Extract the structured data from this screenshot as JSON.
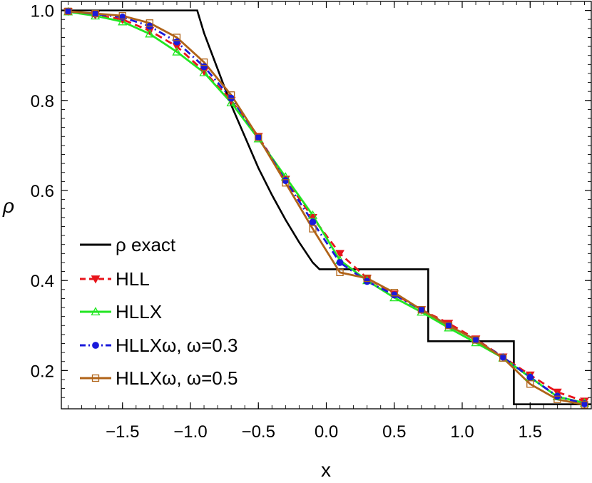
{
  "chart_data": {
    "type": "line",
    "xlabel": "x",
    "ylabel": "ρ",
    "xlim": [
      -1.95,
      1.95
    ],
    "ylim": [
      0.115,
      1.02
    ],
    "xticks": [
      -1.5,
      -1.0,
      -0.5,
      0.0,
      0.5,
      1.0,
      1.5
    ],
    "xtick_labels": [
      "−1.5",
      "−1.0",
      "−0.5",
      "0.0",
      "0.5",
      "1.0",
      "1.5"
    ],
    "yticks": [
      0.2,
      0.4,
      0.6,
      0.8,
      1.0
    ],
    "ytick_labels": [
      "0.2",
      "0.4",
      "0.6",
      "0.8",
      "1.0"
    ],
    "legend_position": "bottom-left",
    "exact": {
      "name": "ρ exact",
      "color": "#000000",
      "x": [
        -1.95,
        -0.95,
        -0.9,
        -0.8,
        -0.7,
        -0.6,
        -0.5,
        -0.4,
        -0.3,
        -0.2,
        -0.1,
        -0.05,
        0.75,
        0.75,
        1.38,
        1.38,
        1.95
      ],
      "y": [
        1.0,
        1.0,
        0.95,
        0.87,
        0.79,
        0.72,
        0.65,
        0.59,
        0.535,
        0.485,
        0.44,
        0.425,
        0.425,
        0.265,
        0.265,
        0.125,
        0.125
      ]
    },
    "x": [
      -1.9,
      -1.7,
      -1.5,
      -1.3,
      -1.1,
      -0.9,
      -0.7,
      -0.5,
      -0.3,
      -0.1,
      0.1,
      0.3,
      0.5,
      0.7,
      0.9,
      1.1,
      1.3,
      1.5,
      1.7,
      1.9
    ],
    "series": [
      {
        "name": "HLL",
        "color": "#e8141b",
        "marker": "triangle-down-filled",
        "dash": "dashed",
        "values": [
          0.998,
          0.99,
          0.98,
          0.955,
          0.92,
          0.865,
          0.8,
          0.72,
          0.625,
          0.54,
          0.46,
          0.405,
          0.37,
          0.335,
          0.305,
          0.27,
          0.23,
          0.19,
          0.152,
          0.132
        ]
      },
      {
        "name": "HLLX",
        "color": "#22e622",
        "marker": "triangle-up-open",
        "dash": "solid",
        "values": [
          0.997,
          0.988,
          0.975,
          0.948,
          0.908,
          0.862,
          0.795,
          0.715,
          0.63,
          0.545,
          0.445,
          0.4,
          0.362,
          0.33,
          0.295,
          0.262,
          0.228,
          0.185,
          0.142,
          0.128
        ]
      },
      {
        "name": "HLLXω, ω=0.3",
        "color": "#1a1adb",
        "marker": "circle-filled",
        "dash": "dashdot",
        "values": [
          0.998,
          0.992,
          0.985,
          0.965,
          0.93,
          0.875,
          0.805,
          0.718,
          0.622,
          0.53,
          0.44,
          0.398,
          0.368,
          0.335,
          0.3,
          0.268,
          0.23,
          0.185,
          0.143,
          0.126
        ]
      },
      {
        "name": "HLLXω, ω=0.5",
        "color": "#b06318",
        "marker": "square-open",
        "dash": "solid",
        "values": [
          0.998,
          0.993,
          0.988,
          0.972,
          0.94,
          0.885,
          0.812,
          0.718,
          0.617,
          0.515,
          0.418,
          0.405,
          0.373,
          0.335,
          0.3,
          0.268,
          0.228,
          0.17,
          0.136,
          0.124
        ]
      }
    ]
  }
}
